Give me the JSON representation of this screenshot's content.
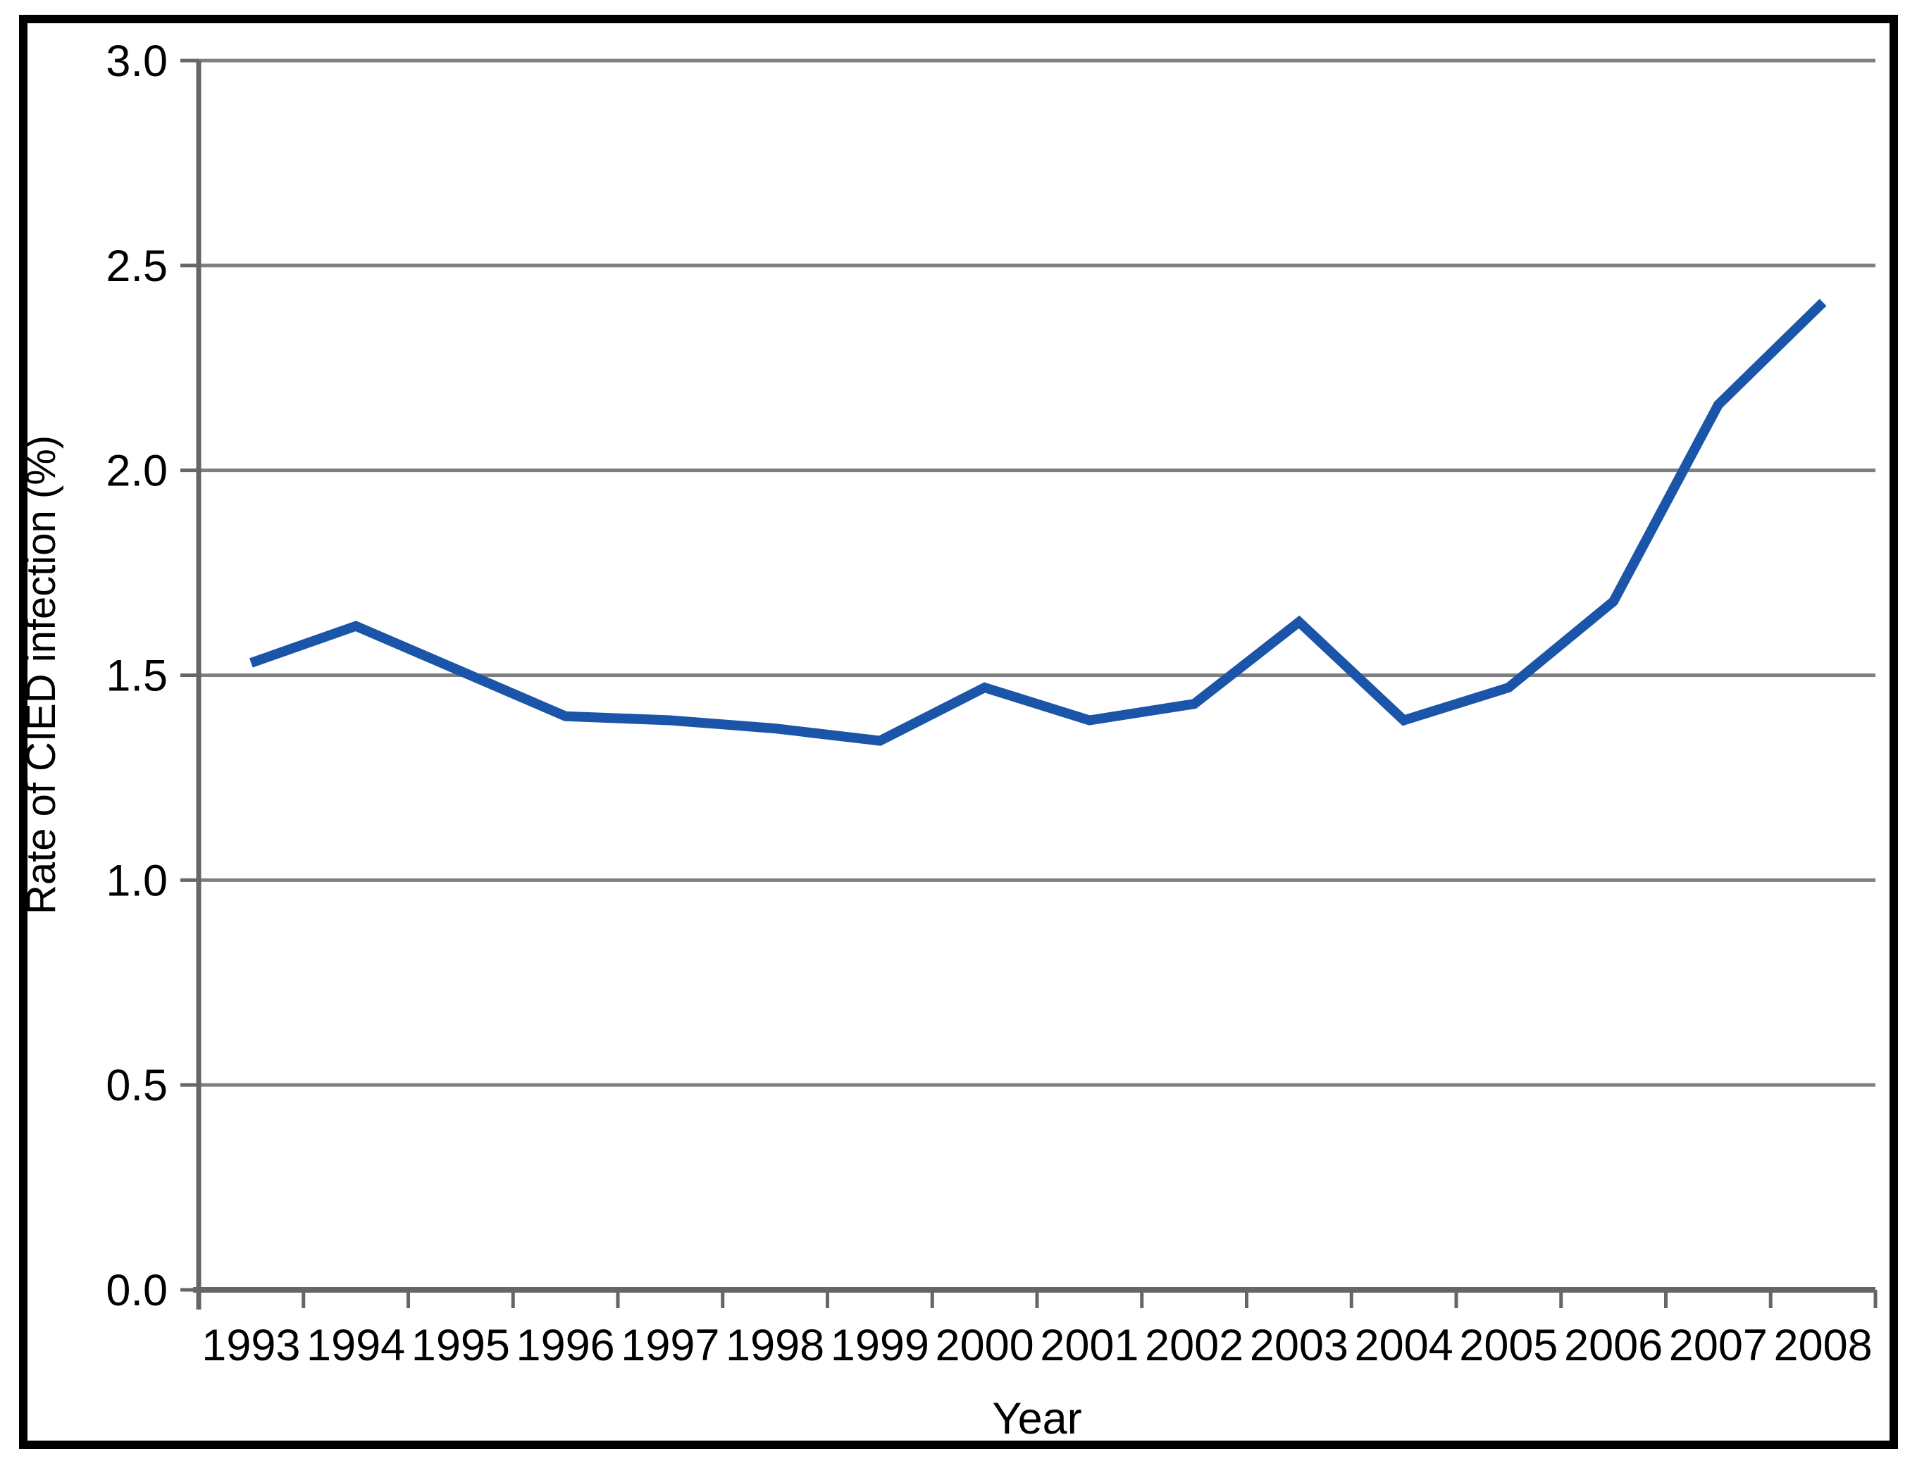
{
  "chart_data": {
    "type": "line",
    "title": "",
    "x": [
      "1993",
      "1994",
      "1995",
      "1996",
      "1997",
      "1998",
      "1999",
      "2000",
      "2001",
      "2002",
      "2003",
      "2004",
      "2005",
      "2006",
      "2007",
      "2008"
    ],
    "series": [
      {
        "name": "Rate of CIED infection",
        "values": [
          1.53,
          1.62,
          1.51,
          1.4,
          1.39,
          1.37,
          1.34,
          1.47,
          1.39,
          1.43,
          1.63,
          1.39,
          1.47,
          1.68,
          2.16,
          2.41
        ]
      }
    ],
    "xlabel": "Year",
    "ylabel": "Rate of CIED infection (%)",
    "ylim": [
      0.0,
      3.0
    ],
    "ytick_step": 0.5,
    "ytick_labels": [
      "3.0",
      "2.5",
      "2.0",
      "1.5",
      "1.0",
      "0.5",
      "0.0"
    ],
    "grid": "horizontal",
    "legend_position": "none",
    "colors": {
      "line": "#1b55a9",
      "gridline": "#7f7f7f",
      "axis": "#666666",
      "text": "#000000",
      "frame": "#000000",
      "background": "#ffffff"
    }
  }
}
